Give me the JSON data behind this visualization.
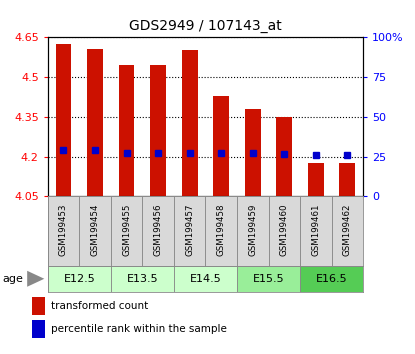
{
  "title": "GDS2949 / 107143_at",
  "samples": [
    "GSM199453",
    "GSM199454",
    "GSM199455",
    "GSM199456",
    "GSM199457",
    "GSM199458",
    "GSM199459",
    "GSM199460",
    "GSM199461",
    "GSM199462"
  ],
  "bar_values": [
    4.625,
    4.605,
    4.545,
    4.545,
    4.6,
    4.43,
    4.38,
    4.35,
    4.175,
    4.175
  ],
  "bar_base": 4.05,
  "percentile_values": [
    4.225,
    4.225,
    4.215,
    4.215,
    4.215,
    4.215,
    4.215,
    4.21,
    4.205,
    4.205
  ],
  "age_groups": [
    {
      "label": "E12.5",
      "start": 0,
      "end": 2,
      "color": "#ccffcc"
    },
    {
      "label": "E13.5",
      "start": 2,
      "end": 4,
      "color": "#ccffcc"
    },
    {
      "label": "E14.5",
      "start": 4,
      "end": 6,
      "color": "#ccffcc"
    },
    {
      "label": "E15.5",
      "start": 6,
      "end": 8,
      "color": "#99ee99"
    },
    {
      "label": "E16.5",
      "start": 8,
      "end": 10,
      "color": "#55cc55"
    }
  ],
  "ylim": [
    4.05,
    4.65
  ],
  "yticks": [
    4.05,
    4.2,
    4.35,
    4.5,
    4.65
  ],
  "right_yticks": [
    0,
    25,
    50,
    75,
    100
  ],
  "right_ytick_labels": [
    "0",
    "25",
    "50",
    "75",
    "100%"
  ],
  "bar_color": "#cc1100",
  "percentile_color": "#0000cc",
  "bar_width": 0.5,
  "bg_color": "#ffffff"
}
